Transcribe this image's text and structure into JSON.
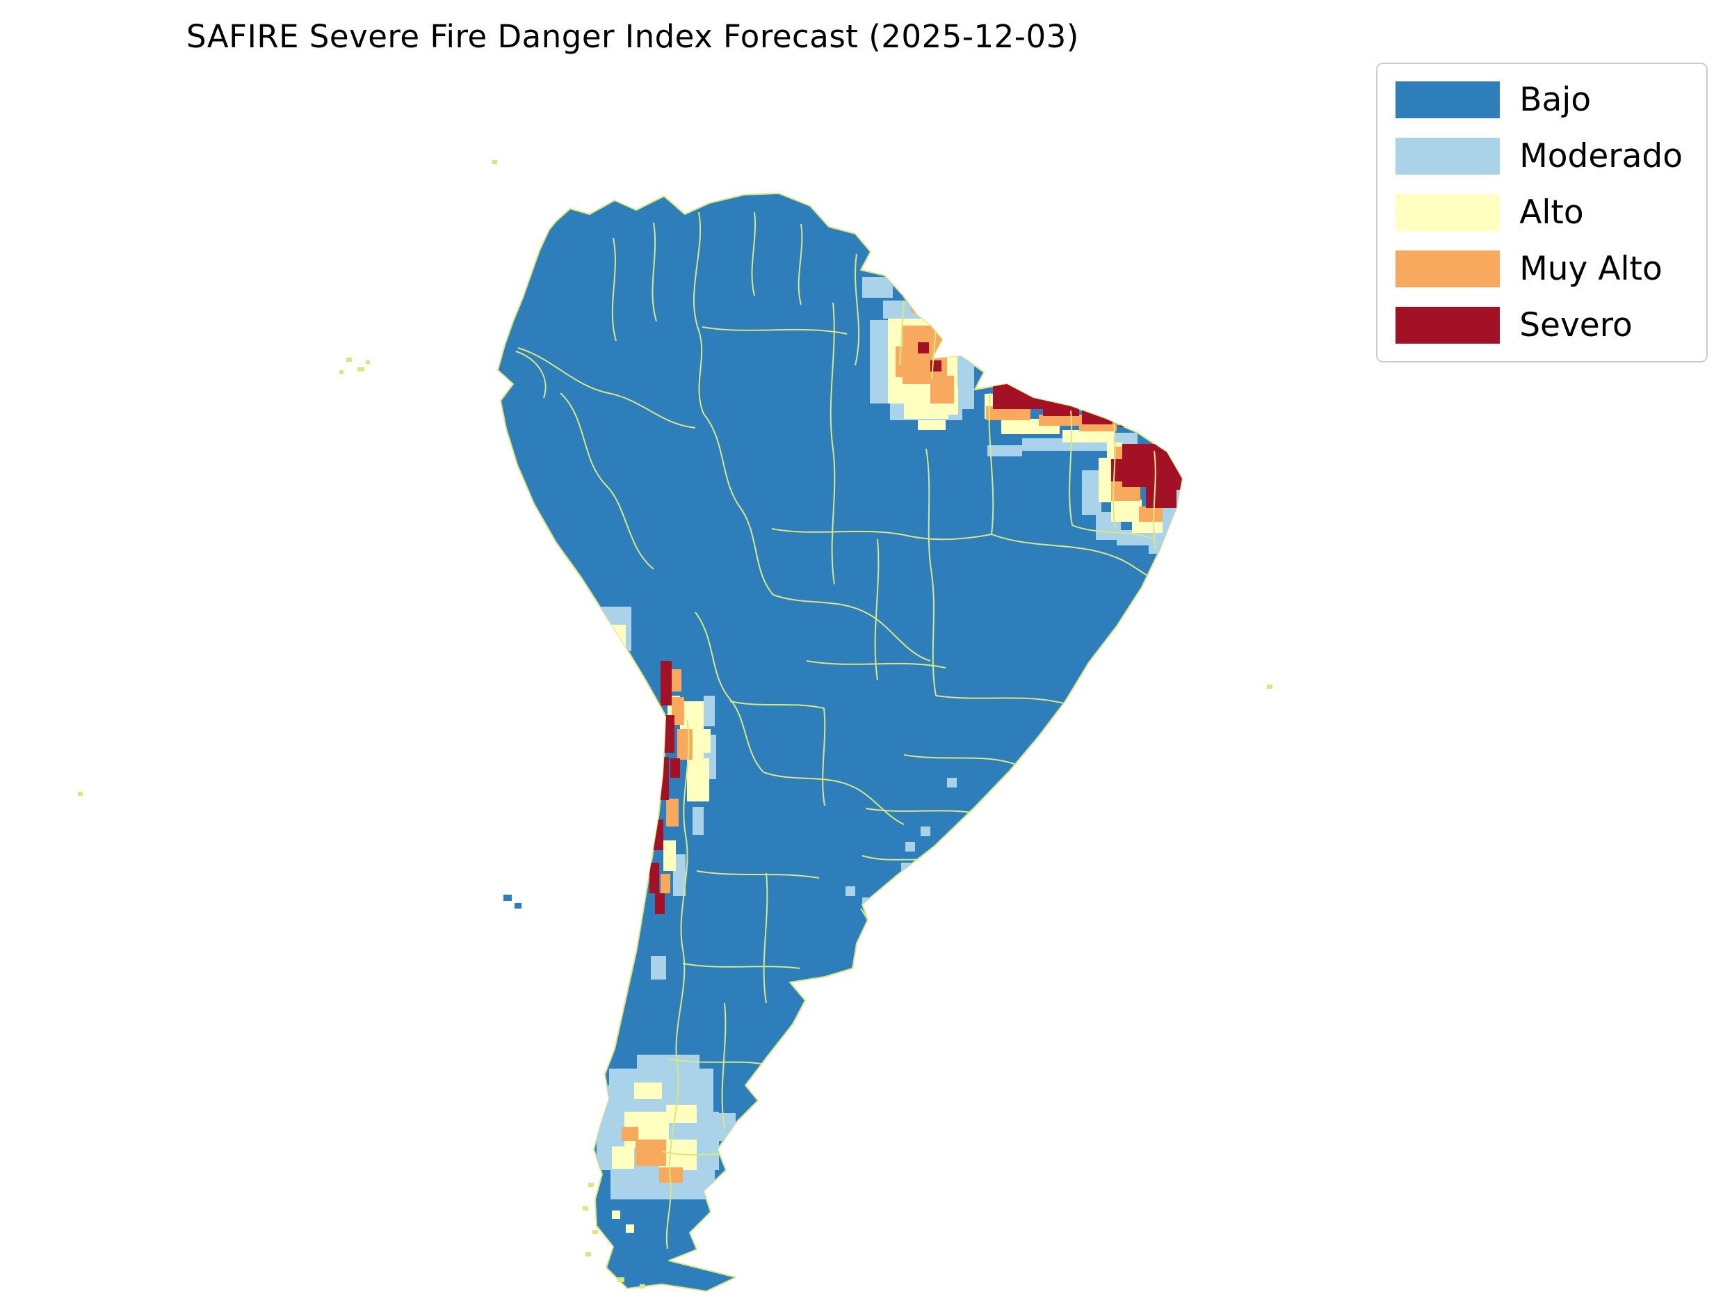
{
  "title": "SAFIRE Severe Fire Danger Index Forecast (2025-12-03)",
  "legend": {
    "items": [
      {
        "label": "Bajo",
        "color": "#2e7ebc"
      },
      {
        "label": "Moderado",
        "color": "#aad3e9"
      },
      {
        "label": "Alto",
        "color": "#ffffbf"
      },
      {
        "label": "Muy Alto",
        "color": "#f9a95e"
      },
      {
        "label": "Severo",
        "color": "#a31126"
      }
    ]
  },
  "map": {
    "region": "South America",
    "base_category": "Bajo",
    "land_color": "#2e7ebc",
    "border_color": "#d9e87e",
    "background_color": "#ffffff",
    "zones": [
      {
        "category": "Moderado",
        "rects": [
          [
            1251,
            460,
            26,
            120
          ],
          [
            1270,
            432,
            110,
            26
          ],
          [
            1375,
            460,
            26,
            128
          ],
          [
            1280,
            580,
            104,
            24
          ],
          [
            1240,
            398,
            44,
            30
          ],
          [
            1470,
            630,
            140,
            18
          ],
          [
            1596,
            622,
            40,
            16
          ],
          [
            1556,
            676,
            28,
            64
          ],
          [
            1576,
            736,
            36,
            40
          ],
          [
            1606,
            762,
            64,
            22
          ],
          [
            1652,
            780,
            36,
            16
          ],
          [
            1664,
            726,
            26,
            96
          ],
          [
            1676,
            690,
            20,
            40
          ],
          [
            1688,
            704,
            18,
            60
          ],
          [
            1420,
            640,
            50,
            16
          ],
          [
            864,
            872,
            44,
            64
          ],
          [
            856,
            930,
            24,
            30
          ],
          [
            1008,
            1056,
            22,
            64
          ],
          [
            968,
            1228,
            18,
            60
          ],
          [
            1012,
            1000,
            16,
            44
          ],
          [
            996,
            1160,
            16,
            40
          ],
          [
            936,
            1374,
            22,
            34
          ],
          [
            1324,
            1188,
            14,
            14
          ],
          [
            1302,
            1210,
            14,
            14
          ],
          [
            1362,
            1118,
            14,
            14
          ],
          [
            1296,
            1240,
            14,
            14
          ],
          [
            1340,
            1258,
            14,
            14
          ],
          [
            1240,
            1290,
            14,
            14
          ],
          [
            1260,
            1308,
            14,
            14
          ],
          [
            1216,
            1274,
            14,
            14
          ],
          [
            1280,
            1312,
            16,
            16
          ],
          [
            1300,
            1330,
            16,
            16
          ],
          [
            876,
            1536,
            150,
            64
          ],
          [
            858,
            1598,
            176,
            84
          ],
          [
            878,
            1680,
            150,
            44
          ],
          [
            916,
            1516,
            90,
            24
          ],
          [
            1028,
            1600,
            30,
            40
          ],
          [
            850,
            1560,
            30,
            40
          ]
        ]
      },
      {
        "category": "Alto",
        "rects": [
          [
            1277,
            458,
            100,
            122
          ],
          [
            1300,
            580,
            64,
            22
          ],
          [
            1356,
            556,
            22,
            40
          ],
          [
            1320,
            604,
            40,
            14
          ],
          [
            1440,
            602,
            84,
            22
          ],
          [
            1528,
            618,
            74,
            18
          ],
          [
            1416,
            566,
            20,
            36
          ],
          [
            1580,
            658,
            26,
            64
          ],
          [
            1598,
            718,
            44,
            32
          ],
          [
            1628,
            748,
            44,
            18
          ],
          [
            1592,
            636,
            22,
            24
          ],
          [
            878,
            898,
            22,
            34
          ],
          [
            978,
            1008,
            34,
            84
          ],
          [
            988,
            1090,
            32,
            62
          ],
          [
            1000,
            1048,
            22,
            34
          ],
          [
            954,
            1208,
            18,
            44
          ],
          [
            960,
            1000,
            18,
            30
          ],
          [
            898,
            1598,
            64,
            52
          ],
          [
            948,
            1638,
            54,
            44
          ],
          [
            880,
            1648,
            32,
            32
          ],
          [
            958,
            1588,
            44,
            26
          ],
          [
            912,
            1556,
            40,
            24
          ],
          [
            880,
            1740,
            12,
            12
          ],
          [
            900,
            1760,
            12,
            12
          ]
        ]
      },
      {
        "category": "Muy Alto",
        "rects": [
          [
            1298,
            468,
            64,
            84
          ],
          [
            1338,
            540,
            34,
            40
          ],
          [
            1288,
            498,
            16,
            44
          ],
          [
            1310,
            432,
            20,
            18
          ],
          [
            1418,
            584,
            64,
            20
          ],
          [
            1494,
            596,
            62,
            16
          ],
          [
            1552,
            606,
            54,
            14
          ],
          [
            1598,
            688,
            42,
            32
          ],
          [
            1638,
            728,
            34,
            22
          ],
          [
            1602,
            642,
            18,
            22
          ],
          [
            882,
            928,
            16,
            22
          ],
          [
            966,
            1002,
            18,
            40
          ],
          [
            974,
            1048,
            22,
            44
          ],
          [
            958,
            1148,
            18,
            40
          ],
          [
            966,
            962,
            14,
            32
          ],
          [
            950,
            1256,
            14,
            28
          ],
          [
            914,
            1638,
            44,
            38
          ],
          [
            948,
            1678,
            34,
            22
          ],
          [
            894,
            1620,
            24,
            20
          ]
        ]
      },
      {
        "category": "Severo",
        "rects": [
          [
            1320,
            492,
            16,
            16
          ],
          [
            1338,
            518,
            16,
            16
          ],
          [
            1428,
            548,
            74,
            40
          ],
          [
            1500,
            574,
            52,
            24
          ],
          [
            1556,
            588,
            44,
            22
          ],
          [
            1610,
            600,
            20,
            14
          ],
          [
            1614,
            638,
            74,
            62
          ],
          [
            1648,
            698,
            44,
            32
          ],
          [
            1598,
            660,
            20,
            32
          ],
          [
            1688,
            664,
            14,
            40
          ],
          [
            950,
            950,
            16,
            64
          ],
          [
            954,
            1028,
            16,
            54
          ],
          [
            946,
            1088,
            16,
            62
          ],
          [
            938,
            1178,
            16,
            44
          ],
          [
            934,
            1240,
            14,
            44
          ],
          [
            942,
            1284,
            14,
            30
          ],
          [
            964,
            1090,
            14,
            28
          ],
          [
            1058,
            1620,
            16,
            16
          ]
        ]
      }
    ]
  }
}
